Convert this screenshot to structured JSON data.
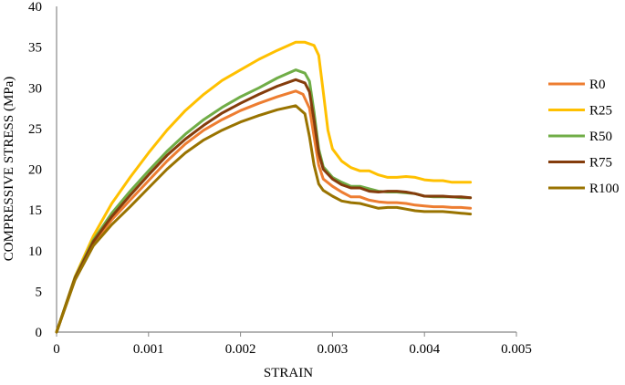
{
  "chart_data": {
    "type": "line",
    "title": "",
    "xlabel": "STRAIN",
    "ylabel": "COMPRESSIVE STRESS (MPa)",
    "xlim": [
      0,
      0.005
    ],
    "ylim": [
      0,
      40
    ],
    "x_ticks": [
      0,
      0.001,
      0.002,
      0.003,
      0.004,
      0.005
    ],
    "x_tick_labels": [
      "0",
      "0.001",
      "0.002",
      "0.003",
      "0.004",
      "0.005"
    ],
    "y_ticks": [
      0,
      5,
      10,
      15,
      20,
      25,
      30,
      35,
      40
    ],
    "y_tick_labels": [
      "0",
      "5",
      "10",
      "15",
      "20",
      "25",
      "30",
      "35",
      "40"
    ],
    "grid": false,
    "legend_position": "right",
    "series": [
      {
        "name": "R0",
        "color": "#ED7D31",
        "points": [
          [
            0,
            0
          ],
          [
            0.0002,
            6.5
          ],
          [
            0.0004,
            10.8
          ],
          [
            0.0006,
            13.8
          ],
          [
            0.0008,
            16.2
          ],
          [
            0.001,
            18.6
          ],
          [
            0.0012,
            21
          ],
          [
            0.0014,
            23.1
          ],
          [
            0.0016,
            24.8
          ],
          [
            0.0018,
            26.1
          ],
          [
            0.002,
            27.2
          ],
          [
            0.0022,
            28.1
          ],
          [
            0.0024,
            28.9
          ],
          [
            0.0026,
            29.6
          ],
          [
            0.00268,
            29.2
          ],
          [
            0.00275,
            27.5
          ],
          [
            0.0028,
            24
          ],
          [
            0.00285,
            20.5
          ],
          [
            0.0029,
            18.8
          ],
          [
            0.003,
            17.9
          ],
          [
            0.0031,
            17.2
          ],
          [
            0.0032,
            16.6
          ],
          [
            0.0033,
            16.6
          ],
          [
            0.0034,
            16.2
          ],
          [
            0.0035,
            16
          ],
          [
            0.0036,
            15.9
          ],
          [
            0.0037,
            15.9
          ],
          [
            0.0038,
            15.8
          ],
          [
            0.0039,
            15.6
          ],
          [
            0.004,
            15.5
          ],
          [
            0.0041,
            15.4
          ],
          [
            0.0042,
            15.4
          ],
          [
            0.0043,
            15.3
          ],
          [
            0.0044,
            15.3
          ],
          [
            0.0045,
            15.2
          ]
        ]
      },
      {
        "name": "R25",
        "color": "#FFC000",
        "points": [
          [
            0,
            0
          ],
          [
            0.0002,
            6.8
          ],
          [
            0.0004,
            11.8
          ],
          [
            0.0006,
            15.8
          ],
          [
            0.0008,
            19
          ],
          [
            0.001,
            22
          ],
          [
            0.0012,
            24.8
          ],
          [
            0.0014,
            27.2
          ],
          [
            0.0016,
            29.2
          ],
          [
            0.0018,
            30.9
          ],
          [
            0.002,
            32.2
          ],
          [
            0.0022,
            33.5
          ],
          [
            0.0024,
            34.6
          ],
          [
            0.0026,
            35.6
          ],
          [
            0.0027,
            35.6
          ],
          [
            0.0028,
            35.2
          ],
          [
            0.00285,
            34
          ],
          [
            0.0029,
            29.5
          ],
          [
            0.00295,
            24.8
          ],
          [
            0.003,
            22.5
          ],
          [
            0.0031,
            21
          ],
          [
            0.0032,
            20.2
          ],
          [
            0.0033,
            19.8
          ],
          [
            0.0034,
            19.8
          ],
          [
            0.0035,
            19.3
          ],
          [
            0.0036,
            19
          ],
          [
            0.0037,
            19
          ],
          [
            0.0038,
            19.1
          ],
          [
            0.0039,
            19
          ],
          [
            0.004,
            18.7
          ],
          [
            0.0041,
            18.6
          ],
          [
            0.0042,
            18.6
          ],
          [
            0.0043,
            18.4
          ],
          [
            0.0044,
            18.4
          ],
          [
            0.0045,
            18.4
          ]
        ]
      },
      {
        "name": "R50",
        "color": "#70AD47",
        "points": [
          [
            0,
            0
          ],
          [
            0.0002,
            6.7
          ],
          [
            0.0004,
            11.3
          ],
          [
            0.0006,
            14.6
          ],
          [
            0.0008,
            17.3
          ],
          [
            0.001,
            19.8
          ],
          [
            0.0012,
            22.2
          ],
          [
            0.0014,
            24.3
          ],
          [
            0.0016,
            26.1
          ],
          [
            0.0018,
            27.6
          ],
          [
            0.002,
            28.9
          ],
          [
            0.0022,
            30
          ],
          [
            0.0024,
            31.2
          ],
          [
            0.0026,
            32.2
          ],
          [
            0.0027,
            31.8
          ],
          [
            0.00275,
            30.8
          ],
          [
            0.0028,
            27
          ],
          [
            0.00285,
            22.5
          ],
          [
            0.0029,
            20.3
          ],
          [
            0.003,
            19
          ],
          [
            0.0031,
            18.4
          ],
          [
            0.0032,
            17.9
          ],
          [
            0.0033,
            17.9
          ],
          [
            0.0034,
            17.6
          ],
          [
            0.0035,
            17.3
          ],
          [
            0.0036,
            17.2
          ],
          [
            0.0037,
            17.2
          ],
          [
            0.0038,
            17.1
          ],
          [
            0.0039,
            17
          ],
          [
            0.004,
            16.7
          ],
          [
            0.0041,
            16.6
          ],
          [
            0.0042,
            16.6
          ],
          [
            0.0043,
            16.6
          ],
          [
            0.0044,
            16.5
          ],
          [
            0.0045,
            16.5
          ]
        ]
      },
      {
        "name": "R75",
        "color": "#843C0C",
        "points": [
          [
            0,
            0
          ],
          [
            0.0002,
            6.6
          ],
          [
            0.0004,
            11.1
          ],
          [
            0.0006,
            14.2
          ],
          [
            0.0008,
            16.8
          ],
          [
            0.001,
            19.3
          ],
          [
            0.0012,
            21.7
          ],
          [
            0.0014,
            23.7
          ],
          [
            0.0016,
            25.4
          ],
          [
            0.0018,
            26.9
          ],
          [
            0.002,
            28.1
          ],
          [
            0.0022,
            29.2
          ],
          [
            0.0024,
            30.2
          ],
          [
            0.0026,
            31
          ],
          [
            0.0027,
            30.6
          ],
          [
            0.00275,
            29.5
          ],
          [
            0.0028,
            26
          ],
          [
            0.00285,
            22
          ],
          [
            0.0029,
            20
          ],
          [
            0.003,
            18.8
          ],
          [
            0.0031,
            18.1
          ],
          [
            0.0032,
            17.7
          ],
          [
            0.0033,
            17.7
          ],
          [
            0.0034,
            17.3
          ],
          [
            0.0035,
            17.2
          ],
          [
            0.0036,
            17.3
          ],
          [
            0.0037,
            17.3
          ],
          [
            0.0038,
            17.2
          ],
          [
            0.0039,
            17
          ],
          [
            0.004,
            16.7
          ],
          [
            0.0041,
            16.7
          ],
          [
            0.0042,
            16.7
          ],
          [
            0.0043,
            16.6
          ],
          [
            0.0044,
            16.6
          ],
          [
            0.0045,
            16.5
          ]
        ]
      },
      {
        "name": "R100",
        "color": "#997300",
        "points": [
          [
            0,
            0
          ],
          [
            0.0002,
            6.4
          ],
          [
            0.0004,
            10.6
          ],
          [
            0.0006,
            13.2
          ],
          [
            0.0008,
            15.4
          ],
          [
            0.001,
            17.7
          ],
          [
            0.0012,
            20
          ],
          [
            0.0014,
            22
          ],
          [
            0.0016,
            23.6
          ],
          [
            0.0018,
            24.8
          ],
          [
            0.002,
            25.8
          ],
          [
            0.0022,
            26.6
          ],
          [
            0.0024,
            27.3
          ],
          [
            0.0026,
            27.8
          ],
          [
            0.0027,
            26.8
          ],
          [
            0.00275,
            24
          ],
          [
            0.0028,
            20.5
          ],
          [
            0.00285,
            18.2
          ],
          [
            0.0029,
            17.4
          ],
          [
            0.003,
            16.7
          ],
          [
            0.0031,
            16.1
          ],
          [
            0.0032,
            15.9
          ],
          [
            0.0033,
            15.8
          ],
          [
            0.0034,
            15.5
          ],
          [
            0.0035,
            15.2
          ],
          [
            0.0036,
            15.3
          ],
          [
            0.0037,
            15.3
          ],
          [
            0.0038,
            15.1
          ],
          [
            0.0039,
            14.9
          ],
          [
            0.004,
            14.8
          ],
          [
            0.0041,
            14.8
          ],
          [
            0.0042,
            14.8
          ],
          [
            0.0043,
            14.7
          ],
          [
            0.0044,
            14.6
          ],
          [
            0.0045,
            14.5
          ]
        ]
      }
    ]
  }
}
